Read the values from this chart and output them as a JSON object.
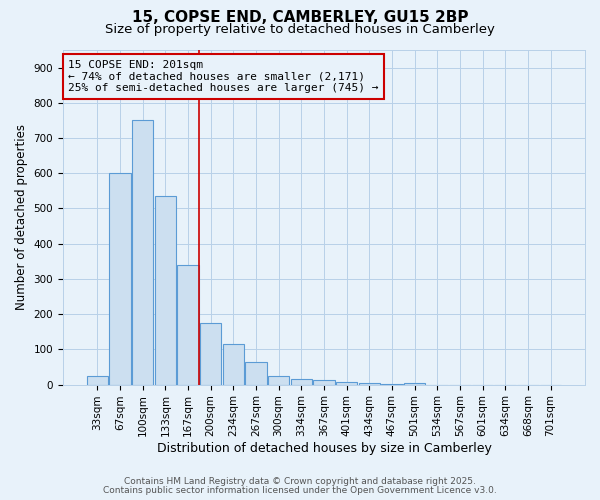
{
  "title1": "15, COPSE END, CAMBERLEY, GU15 2BP",
  "title2": "Size of property relative to detached houses in Camberley",
  "xlabel": "Distribution of detached houses by size in Camberley",
  "ylabel": "Number of detached properties",
  "categories": [
    "33sqm",
    "67sqm",
    "100sqm",
    "133sqm",
    "167sqm",
    "200sqm",
    "234sqm",
    "267sqm",
    "300sqm",
    "334sqm",
    "367sqm",
    "401sqm",
    "434sqm",
    "467sqm",
    "501sqm",
    "534sqm",
    "567sqm",
    "601sqm",
    "634sqm",
    "668sqm",
    "701sqm"
  ],
  "values": [
    25,
    600,
    750,
    535,
    340,
    175,
    115,
    65,
    25,
    15,
    12,
    8,
    5,
    3,
    5,
    0,
    0,
    0,
    0,
    0,
    0
  ],
  "bar_color": "#ccdff0",
  "bar_edge_color": "#5b9bd5",
  "grid_color": "#b8d0e8",
  "background_color": "#e8f2fa",
  "vline_x_index": 4.5,
  "vline_color": "#cc0000",
  "annotation_text": "15 COPSE END: 201sqm\n← 74% of detached houses are smaller (2,171)\n25% of semi-detached houses are larger (745) →",
  "annotation_box_color": "#cc0000",
  "annotation_text_color": "#000000",
  "ylim": [
    0,
    950
  ],
  "yticks": [
    0,
    100,
    200,
    300,
    400,
    500,
    600,
    700,
    800,
    900
  ],
  "footnote1": "Contains HM Land Registry data © Crown copyright and database right 2025.",
  "footnote2": "Contains public sector information licensed under the Open Government Licence v3.0.",
  "title_fontsize": 11,
  "subtitle_fontsize": 9.5,
  "xlabel_fontsize": 9,
  "ylabel_fontsize": 8.5,
  "tick_fontsize": 7.5,
  "annotation_fontsize": 8,
  "footnote_fontsize": 6.5
}
